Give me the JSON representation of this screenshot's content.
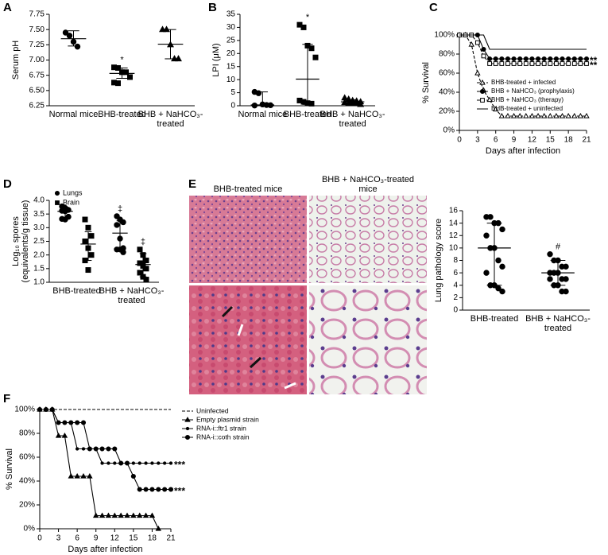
{
  "chart_data": [
    {
      "panel": "A",
      "type": "dot",
      "ylabel": "Serum pH",
      "categories": [
        "Normal mice",
        "BHB-treated",
        "BHB + NaHCO₃-treated"
      ],
      "ylim": [
        6.25,
        7.75
      ],
      "yticks": [
        6.25,
        {
          "value": 6.5,
          "label": "6.50"
        },
        6.75,
        {
          "value": 7,
          "label": "7.00"
        },
        7.25,
        {
          "value": 7.5,
          "label": "7.50"
        },
        7.75
      ],
      "series": [
        {
          "color": "#000000",
          "marker": [
            "circle",
            "square",
            "triangle"
          ],
          "values": [
            [
              7.45,
              7.4,
              7.3,
              7.22
            ],
            [
              6.88,
              6.87,
              6.8,
              6.8,
              6.72,
              6.63,
              6.62
            ],
            [
              7.5,
              7.5,
              7.25,
              7.02,
              7.02
            ]
          ],
          "center": [
            7.35,
            6.78,
            7.26
          ],
          "whisker_low": [
            7.23,
            6.7,
            7.02
          ],
          "whisker_high": [
            7.48,
            6.87,
            7.5
          ],
          "annotations": [
            null,
            "*",
            null
          ]
        }
      ]
    },
    {
      "panel": "B",
      "type": "dot",
      "ylabel": "LPI (μM)",
      "categories": [
        "Normal mice",
        "BHB-treated",
        "BHB + NaHCO₃-treated"
      ],
      "ylim": [
        0,
        35
      ],
      "yticks": [
        0,
        5,
        10,
        15,
        20,
        25,
        30,
        35
      ],
      "series": [
        {
          "color": "#000000",
          "marker": [
            "circle",
            "square",
            "triangle"
          ],
          "values": [
            [
              5.3,
              4.8,
              0.5,
              0.3,
              0.2,
              0.1
            ],
            [
              31,
              30,
              23,
              22,
              18.5,
              2,
              1.5,
              1,
              0.8
            ],
            [
              3,
              2.5,
              2,
              1.8,
              1.5,
              1.2,
              1,
              0.9,
              0.8,
              0.5
            ]
          ],
          "center": [
            0.3,
            10.2,
            1.5
          ],
          "whisker_low": [
            0,
            0.5,
            0.8
          ],
          "whisker_high": [
            5.3,
            23.5,
            2.3
          ],
          "annotations": [
            null,
            "*",
            null
          ]
        }
      ]
    },
    {
      "panel": "C",
      "type": "line",
      "ylabel": "% Survival",
      "xlabel": "Days after infection",
      "legend": "inside-right",
      "x": [
        0,
        1,
        2,
        3,
        4,
        5,
        6,
        7,
        8,
        9,
        10,
        11,
        12,
        13,
        14,
        15,
        16,
        17,
        18,
        19,
        20,
        21
      ],
      "xlim": [
        0,
        21
      ],
      "xticks": [
        0,
        3,
        6,
        9,
        12,
        15,
        18,
        21
      ],
      "ylim": [
        0,
        100
      ],
      "yticks": [
        {
          "value": 0,
          "label": "0%"
        },
        {
          "value": 20,
          "label": "20%"
        },
        {
          "value": 40,
          "label": "40%"
        },
        {
          "value": 60,
          "label": "60%"
        },
        {
          "value": 80,
          "label": "80%"
        },
        {
          "value": 100,
          "label": "100%"
        }
      ],
      "series": [
        {
          "name": "BHB-treated + infected",
          "color": "#000000",
          "marker": "triangle-open",
          "dash": true,
          "values": [
            100,
            100,
            90,
            60,
            42,
            32,
            22,
            15,
            15,
            15,
            15,
            15,
            15,
            15,
            15,
            15,
            15,
            15,
            15,
            15,
            15,
            15
          ]
        },
        {
          "name": "BHB + NaHCO₃ (prophylaxis)",
          "color": "#000000",
          "marker": "circle",
          "annotation": "**",
          "values": [
            100,
            100,
            100,
            100,
            85,
            75,
            75,
            75,
            75,
            75,
            75,
            75,
            75,
            75,
            75,
            75,
            75,
            75,
            75,
            75,
            75,
            75
          ]
        },
        {
          "name": "BHB + NaHCO₃ (therapy)",
          "color": "#000000",
          "marker": "square-open",
          "dash": true,
          "annotation": "**",
          "values": [
            100,
            100,
            100,
            92,
            78,
            70,
            70,
            70,
            70,
            70,
            70,
            70,
            70,
            70,
            70,
            70,
            70,
            70,
            70,
            70,
            70,
            70
          ]
        },
        {
          "name": "BHB-treated + uninfected",
          "color": "#000000",
          "values": [
            100,
            100,
            100,
            100,
            100,
            85,
            85,
            85,
            85,
            85,
            85,
            85,
            85,
            85,
            85,
            85,
            85,
            85,
            85,
            85,
            85,
            85
          ]
        }
      ]
    },
    {
      "panel": "D",
      "type": "dot",
      "ylabel": [
        "Log₁₀ spores",
        "(equivalents/g tissue)"
      ],
      "legend": "inside-top-left",
      "categories": [
        "BHB-treated",
        "BHB + NaHCO₃-treated"
      ],
      "ylim": [
        1,
        4
      ],
      "yticks": [
        {
          "value": 1,
          "label": "1.0"
        },
        1.5,
        {
          "value": 2,
          "label": "2.0"
        },
        2.5,
        {
          "value": 3,
          "label": "3.0"
        },
        3.5,
        {
          "value": 4,
          "label": "4.0"
        }
      ],
      "series": [
        {
          "name": "Lungs",
          "color": "#000000",
          "marker": "circle",
          "values": [
            [
              3.78,
              3.72,
              3.65,
              3.62,
              3.6,
              3.4,
              3.32,
              3.3
            ],
            [
              3.42,
              3.3,
              3.2,
              3.1,
              2.6,
              2.25,
              2.2,
              2.2,
              2.1
            ]
          ],
          "center": [
            3.6,
            2.8
          ],
          "whisker_low": [
            3.35,
            2.25
          ],
          "whisker_high": [
            3.75,
            3.25
          ],
          "annotations": [
            null,
            "‡"
          ]
        },
        {
          "name": "Brain",
          "color": "#000000",
          "marker": "square",
          "values": [
            [
              3.3,
              3.0,
              2.7,
              2.5,
              2.25,
              2.0,
              1.8,
              1.45
            ],
            [
              2.2,
              2.0,
              1.8,
              1.7,
              1.6,
              1.5,
              1.35,
              1.2,
              1.1
            ]
          ],
          "center": [
            2.4,
            1.65
          ],
          "whisker_low": [
            1.8,
            1.2
          ],
          "whisker_high": [
            2.85,
            2.05
          ],
          "annotations": [
            null,
            "‡"
          ]
        }
      ]
    },
    {
      "type": "dot",
      "ylabel": "Lung pathology score",
      "categories": [
        "BHB-treated",
        "BHB + NaHCO₃-treated"
      ],
      "ylim": [
        0,
        16
      ],
      "yticks": [
        0,
        2,
        4,
        6,
        8,
        10,
        12,
        14,
        16
      ],
      "series": [
        {
          "color": "#000000",
          "marker": "circle",
          "values": [
            [
              15,
              15,
              14,
              14,
              13,
              12,
              10,
              10,
              8,
              7,
              6,
              4,
              4,
              3.5,
              3
            ],
            [
              9,
              8,
              8,
              7,
              7,
              6,
              6,
              6,
              5,
              5,
              5,
              4,
              4,
              3,
              3
            ]
          ],
          "center": [
            10,
            6
          ],
          "whisker_low": [
            4,
            4
          ],
          "whisker_high": [
            14,
            8
          ],
          "annotations": [
            null,
            "#"
          ]
        }
      ]
    },
    {
      "panel": "F",
      "type": "line",
      "ylabel": "% Survival",
      "xlabel": "Days after infection",
      "legend": "outside-right",
      "x": [
        0,
        1,
        2,
        3,
        4,
        5,
        6,
        7,
        8,
        9,
        10,
        11,
        12,
        13,
        14,
        15,
        16,
        17,
        18,
        19,
        20,
        21
      ],
      "xlim": [
        0,
        21
      ],
      "xticks": [
        0,
        3,
        6,
        9,
        12,
        15,
        18,
        21
      ],
      "ylim": [
        0,
        100
      ],
      "yticks": [
        {
          "value": 0,
          "label": "0%"
        },
        {
          "value": 20,
          "label": "20%"
        },
        {
          "value": 40,
          "label": "40%"
        },
        {
          "value": 60,
          "label": "60%"
        },
        {
          "value": 80,
          "label": "80%"
        },
        {
          "value": 100,
          "label": "100%"
        }
      ],
      "series": [
        {
          "name": "Uninfected",
          "color": "#000000",
          "dash": true,
          "values": [
            100,
            100,
            100,
            100,
            100,
            100,
            100,
            100,
            100,
            100,
            100,
            100,
            100,
            100,
            100,
            100,
            100,
            100,
            100,
            100,
            100,
            100
          ]
        },
        {
          "name": "Empty plasmid strain",
          "color": "#000000",
          "marker": "triangle",
          "values": [
            100,
            100,
            100,
            78,
            78,
            44,
            44,
            44,
            44,
            11,
            11,
            11,
            11,
            11,
            11,
            11,
            11,
            11,
            11,
            0,
            null,
            null
          ]
        },
        {
          "name": "RNA-i::ftr1 strain",
          "color": "#000000",
          "marker": "dot",
          "annotation": "***",
          "values": [
            100,
            100,
            100,
            89,
            89,
            89,
            67,
            67,
            67,
            67,
            55,
            55,
            55,
            55,
            55,
            55,
            55,
            55,
            55,
            55,
            55,
            55
          ]
        },
        {
          "name": "RNA-i::coth strain",
          "color": "#000000",
          "marker": "circle",
          "annotation": "***",
          "values": [
            100,
            100,
            100,
            89,
            89,
            89,
            89,
            89,
            67,
            67,
            67,
            67,
            67,
            55,
            55,
            44,
            33,
            33,
            33,
            33,
            33,
            33
          ]
        }
      ]
    }
  ],
  "histology": {
    "panel": "E",
    "titles": [
      "BHB-treated mice",
      "BHB + NaHCO₃-treated mice"
    ]
  }
}
